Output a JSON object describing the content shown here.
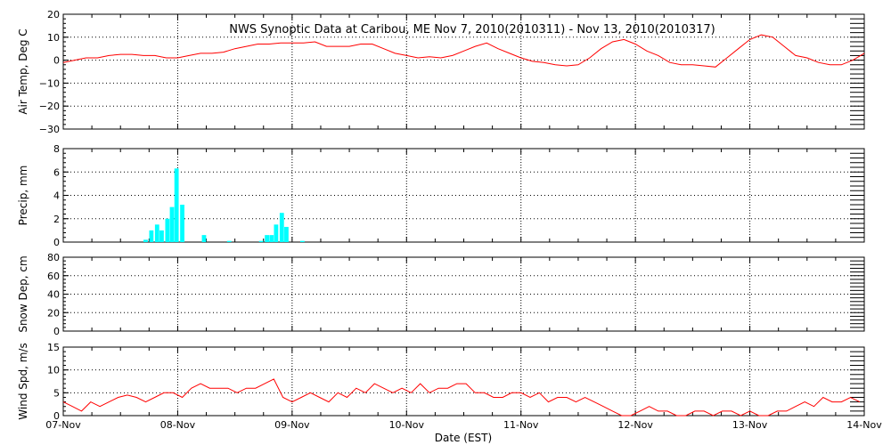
{
  "chart_data": [
    {
      "type": "line",
      "title": "NWS Synoptic Data at Caribou, ME   Nov  7, 2010(2010311) - Nov 13, 2010(2010317)",
      "ylabel": "Air Temp, Deg C",
      "ylim": [
        -30,
        20
      ],
      "yticks": [
        "20",
        "10",
        "0",
        "−10",
        "−20",
        "−30"
      ],
      "ytick_values": [
        20,
        10,
        0,
        -10,
        -20,
        -30
      ],
      "grid": true,
      "color": "#ff0000",
      "series": [
        {
          "x": [
            0.0,
            0.1,
            0.2,
            0.3,
            0.4,
            0.5,
            0.6,
            0.7,
            0.8,
            0.9,
            1.0,
            1.1,
            1.2,
            1.3,
            1.4,
            1.5,
            1.6,
            1.7,
            1.8,
            1.9,
            2.0,
            2.1,
            2.2,
            2.3,
            2.4,
            2.5,
            2.6,
            2.7,
            2.8,
            2.9,
            3.0,
            3.1,
            3.2,
            3.3,
            3.4,
            3.5,
            3.6,
            3.7,
            3.8,
            3.9,
            4.0,
            4.1,
            4.2,
            4.3,
            4.4,
            4.5,
            4.6,
            4.7,
            4.8,
            4.9,
            5.0,
            5.1,
            5.2,
            5.3,
            5.4,
            5.5,
            5.6,
            5.7,
            5.8,
            5.9,
            6.0,
            6.1,
            6.2,
            6.3,
            6.4,
            6.5,
            6.6,
            6.7,
            6.8,
            6.9,
            7.0
          ],
          "values": [
            -1,
            0,
            1,
            1,
            2,
            2.5,
            2.5,
            2,
            2,
            1,
            1,
            2,
            3,
            3,
            3.5,
            5,
            6,
            7,
            7,
            7.5,
            7.5,
            7.5,
            8,
            6,
            6,
            6,
            7,
            7,
            5,
            3,
            2,
            1,
            1.5,
            1,
            2,
            4,
            6,
            7.5,
            5,
            3,
            1,
            -0.5,
            -1,
            -2,
            -2.5,
            -2,
            1,
            5,
            8,
            9,
            7,
            4,
            2,
            -1,
            -2,
            -2,
            -2.5,
            -3,
            1,
            5,
            9,
            11,
            10,
            6,
            2,
            1,
            -1,
            -2,
            -2,
            0,
            3
          ]
        }
      ]
    },
    {
      "type": "bar",
      "ylabel": "Precip, mm",
      "ylim": [
        0,
        8
      ],
      "yticks": [
        "8",
        "6",
        "4",
        "2",
        "0"
      ],
      "ytick_values": [
        8,
        6,
        4,
        2,
        0
      ],
      "grid": true,
      "color": "#00ffff",
      "series": [
        {
          "x": [
            0.72,
            0.77,
            0.82,
            0.86,
            0.91,
            0.95,
            0.99,
            1.04,
            1.23,
            1.45,
            1.73,
            1.78,
            1.82,
            1.86,
            1.91,
            1.95,
            2.09
          ],
          "values": [
            0.2,
            1.0,
            1.5,
            1.0,
            2.0,
            3.0,
            6.3,
            3.2,
            0.6,
            0.1,
            0.1,
            0.6,
            0.6,
            1.5,
            2.5,
            1.3,
            0.1
          ]
        }
      ]
    },
    {
      "type": "line",
      "ylabel": "Snow Dep, cm",
      "ylim": [
        0,
        80
      ],
      "yticks": [
        "80",
        "60",
        "40",
        "20",
        "0"
      ],
      "ytick_values": [
        80,
        60,
        40,
        20,
        0
      ],
      "grid": true,
      "series": []
    },
    {
      "type": "line",
      "ylabel": "Wind Spd, m/s",
      "ylim": [
        0,
        15
      ],
      "yticks": [
        "15",
        "10",
        "5",
        "0"
      ],
      "ytick_values": [
        15,
        10,
        5,
        0
      ],
      "grid": true,
      "color": "#ff0000",
      "xlabel": "Date (EST)",
      "categories": [
        "07-Nov",
        "08-Nov",
        "09-Nov",
        "10-Nov",
        "11-Nov",
        "12-Nov",
        "13-Nov",
        "14-Nov"
      ],
      "series": [
        {
          "x": [
            0.0,
            0.08,
            0.16,
            0.24,
            0.32,
            0.4,
            0.48,
            0.56,
            0.64,
            0.72,
            0.8,
            0.88,
            0.96,
            1.04,
            1.12,
            1.2,
            1.28,
            1.36,
            1.44,
            1.52,
            1.6,
            1.68,
            1.76,
            1.84,
            1.92,
            2.0,
            2.08,
            2.16,
            2.24,
            2.32,
            2.4,
            2.48,
            2.56,
            2.64,
            2.72,
            2.8,
            2.88,
            2.96,
            3.04,
            3.12,
            3.2,
            3.28,
            3.36,
            3.44,
            3.52,
            3.6,
            3.68,
            3.76,
            3.84,
            3.92,
            4.0,
            4.08,
            4.16,
            4.24,
            4.32,
            4.4,
            4.48,
            4.56,
            4.64,
            4.72,
            4.8,
            4.88,
            4.96,
            5.04,
            5.12,
            5.2,
            5.28,
            5.36,
            5.44,
            5.52,
            5.6,
            5.68,
            5.76,
            5.84,
            5.92,
            6.0,
            6.08,
            6.16,
            6.24,
            6.32,
            6.4,
            6.48,
            6.56,
            6.64,
            6.72,
            6.8,
            6.88,
            6.96
          ],
          "values": [
            3,
            2,
            1,
            3,
            2,
            3,
            4,
            4.5,
            4,
            3,
            4,
            5,
            5,
            4,
            6,
            7,
            6,
            6,
            6,
            5,
            6,
            6,
            7,
            8,
            4,
            3,
            4,
            5,
            4,
            3,
            5,
            4,
            6,
            5,
            7,
            6,
            5,
            6,
            5,
            7,
            5,
            6,
            6,
            7,
            7,
            5,
            5,
            4,
            4,
            5,
            5,
            4,
            5,
            3,
            4,
            4,
            3,
            4,
            3,
            2,
            1,
            0,
            0,
            1,
            2,
            1,
            1,
            0,
            0,
            1,
            1,
            0,
            1,
            1,
            0,
            1,
            0,
            0,
            1,
            1,
            2,
            3,
            2,
            4,
            3,
            3,
            4,
            3
          ]
        }
      ]
    }
  ]
}
